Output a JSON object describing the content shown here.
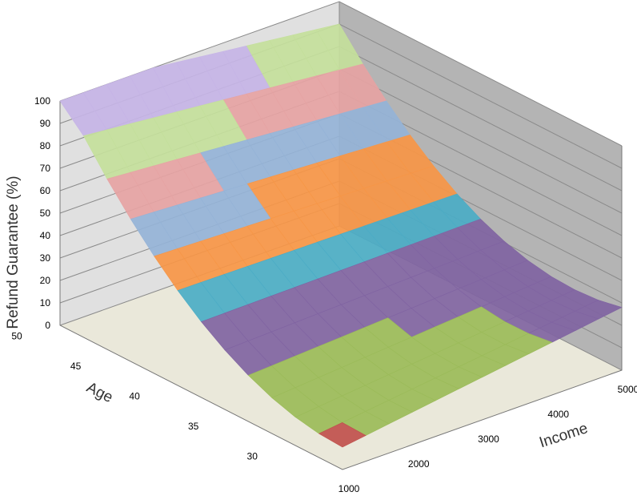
{
  "chart_data": {
    "type": "surface3d",
    "title": "",
    "zlabel": "Refund Guarantee (%)",
    "xlabel": "Income",
    "ylabel": "Age",
    "zlim": [
      0,
      100
    ],
    "z_ticks": [
      "0",
      "10",
      "20",
      "30",
      "40",
      "50",
      "60",
      "70",
      "80",
      "90",
      "100"
    ],
    "x_ticks": [
      "1000",
      "2000",
      "3000",
      "4000",
      "5000"
    ],
    "y_ticks": [
      "30",
      "35",
      "40",
      "45",
      "50"
    ],
    "income_range": [
      1000,
      5000
    ],
    "age_range": [
      27,
      51
    ],
    "grid": true,
    "legend": "none",
    "band_colors": [
      "#c0504d",
      "#9bbb59",
      "#8064a2",
      "#4bacc6",
      "#f79646",
      "#95b3d7",
      "#e6a3a3",
      "#c4df9b",
      "#c6b4e6"
    ],
    "wall_colors": {
      "back_left": "#e0e0e0",
      "back_right": "#b4b4b4",
      "floor": "#eae8da"
    }
  }
}
